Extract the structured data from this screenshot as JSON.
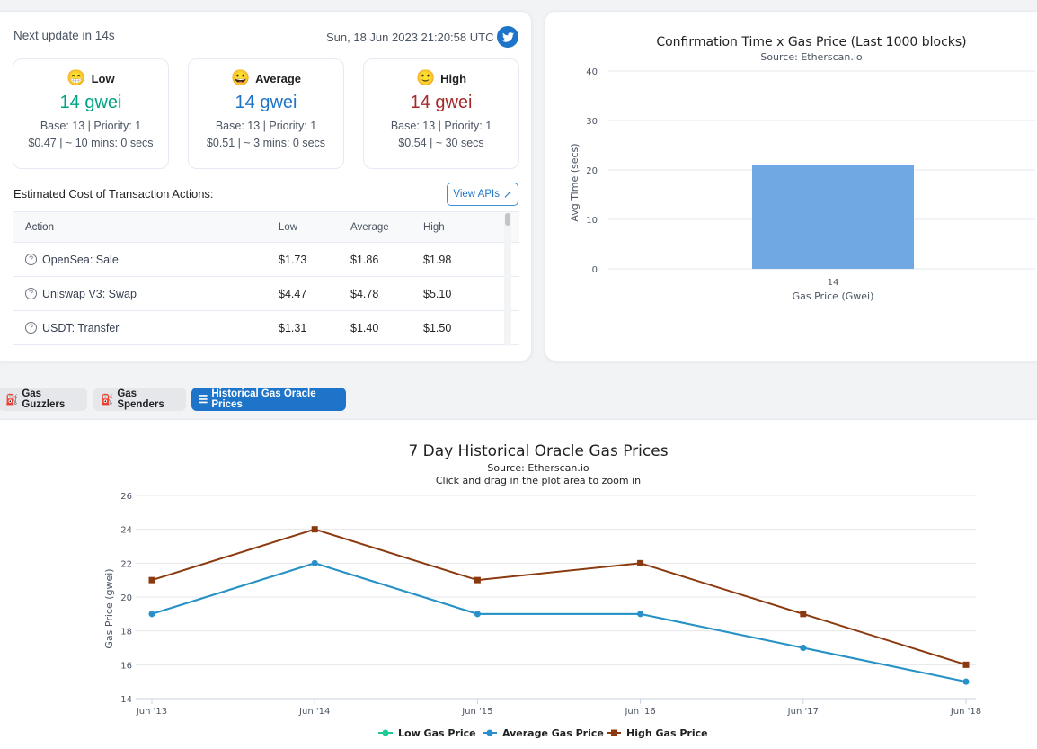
{
  "header": {
    "next_update": "Next update in 14s",
    "timestamp": "Sun, 18 Jun 2023 21:20:58 UTC"
  },
  "tiers": [
    {
      "name": "Low",
      "emoji": "😁",
      "price": "14 gwei",
      "base": "Base: 13 | Priority: 1",
      "cost": "$0.47 | ~ 10 mins: 0 secs",
      "color": "#00a186"
    },
    {
      "name": "Average",
      "emoji": "😀",
      "price": "14 gwei",
      "base": "Base: 13 | Priority: 1",
      "cost": "$0.51 | ~ 3 mins: 0 secs",
      "color": "#1d74c9"
    },
    {
      "name": "High",
      "emoji": "🙂",
      "price": "14 gwei",
      "base": "Base: 13 | Priority: 1",
      "cost": "$0.54 | ~ 30 secs",
      "color": "#a52a2a"
    }
  ],
  "estimates": {
    "title": "Estimated Cost of Transaction Actions:",
    "view_apis": "View APIs",
    "columns": [
      "Action",
      "Low",
      "Average",
      "High"
    ],
    "rows": [
      {
        "action": "OpenSea: Sale",
        "low": "$1.73",
        "avg": "$1.86",
        "high": "$1.98"
      },
      {
        "action": "Uniswap V3: Swap",
        "low": "$4.47",
        "avg": "$4.78",
        "high": "$5.10"
      },
      {
        "action": "USDT: Transfer",
        "low": "$1.31",
        "avg": "$1.40",
        "high": "$1.50"
      }
    ]
  },
  "tabs": {
    "guzzlers": "Gas Guzzlers",
    "spenders": "Gas Spenders",
    "historical": "Historical Gas Oracle Prices"
  },
  "colors": {
    "low": "#00a186",
    "average": "#1d74c9",
    "high": "#a52a2a",
    "bar": "#6fa8e3",
    "line_avg": "#2b8fc9",
    "line_high": "#8b3a0f"
  },
  "chart_data": [
    {
      "type": "bar",
      "title": "Confirmation Time x Gas Price (Last 1000 blocks)",
      "subtitle": "Source: Etherscan.io",
      "xlabel": "Gas Price (Gwei)",
      "ylabel": "Avg Time (secs)",
      "categories": [
        "14"
      ],
      "values": [
        21
      ],
      "ylim": [
        0,
        40
      ],
      "yticks": [
        0,
        10,
        20,
        30,
        40
      ],
      "grid": true
    },
    {
      "type": "line",
      "title": "7 Day Historical Oracle Gas Prices",
      "subtitle": "Source: Etherscan.io",
      "subtitle2": "Click and drag in the plot area to zoom in",
      "ylabel": "Gas Price (gwei)",
      "x": [
        "Jun '13",
        "Jun '14",
        "Jun '15",
        "Jun '16",
        "Jun '17",
        "Jun '18"
      ],
      "ylim": [
        14,
        26
      ],
      "yticks": [
        14,
        16,
        18,
        20,
        22,
        24,
        26
      ],
      "grid": true,
      "legend_position": "bottom",
      "series": [
        {
          "name": "Low Gas Price",
          "values": [
            19,
            22,
            19,
            19,
            17,
            15
          ],
          "color": "#20c997",
          "marker": "circle"
        },
        {
          "name": "Average Gas Price",
          "values": [
            19,
            22,
            19,
            19,
            17,
            15
          ],
          "color": "#2b8fc9",
          "marker": "diamond"
        },
        {
          "name": "High Gas Price",
          "values": [
            21,
            24,
            21,
            22,
            19,
            16
          ],
          "color": "#8b3a0f",
          "marker": "square"
        }
      ]
    }
  ]
}
